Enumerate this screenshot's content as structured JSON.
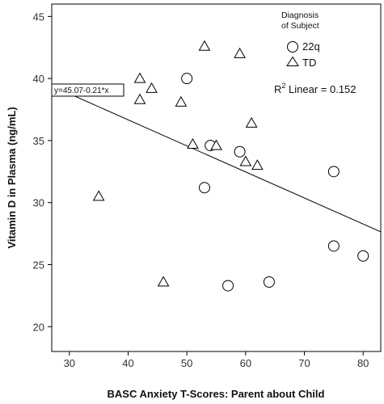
{
  "chart_data": {
    "type": "scatter",
    "xlabel": "BASC Anxiety T-Scores: Parent about Child",
    "ylabel": "Vitamin D in Plasma (ng/mL)",
    "xlim": [
      27,
      83
    ],
    "ylim": [
      18,
      46
    ],
    "xticks": [
      "30",
      "40",
      "50",
      "60",
      "70",
      "80"
    ],
    "yticks": [
      "20",
      "25",
      "30",
      "35",
      "40",
      "45"
    ],
    "xtick_values": [
      30,
      40,
      50,
      60,
      70,
      80
    ],
    "ytick_values": [
      20,
      25,
      30,
      35,
      40,
      45
    ],
    "grid": false,
    "legend": {
      "title_line1": "Diagnosis",
      "title_line2": "of Subject",
      "placement": "top-right",
      "entries": [
        "22q",
        "TD"
      ]
    },
    "r2_label": "R",
    "r2_sup": "2",
    "r2_rest": " Linear = 0.152",
    "equation_label": "y=45.07-0.21*x",
    "fit_line": {
      "intercept": 45.07,
      "slope": -0.21
    },
    "series": [
      {
        "name": "22q",
        "marker": "circle",
        "points": [
          [
            50,
            40.0
          ],
          [
            54,
            34.6
          ],
          [
            59,
            34.1
          ],
          [
            53,
            31.2
          ],
          [
            75,
            32.5
          ],
          [
            75,
            26.5
          ],
          [
            80,
            25.7
          ],
          [
            57,
            23.3
          ],
          [
            64,
            23.6
          ]
        ]
      },
      {
        "name": "TD",
        "marker": "triangle",
        "points": [
          [
            53,
            42.6
          ],
          [
            59,
            42.0
          ],
          [
            42,
            40.0
          ],
          [
            44,
            39.2
          ],
          [
            42,
            38.3
          ],
          [
            49,
            38.1
          ],
          [
            61,
            36.4
          ],
          [
            51,
            34.7
          ],
          [
            55,
            34.6
          ],
          [
            60,
            33.3
          ],
          [
            62,
            33.0
          ],
          [
            35,
            30.5
          ],
          [
            46,
            23.6
          ]
        ]
      }
    ]
  }
}
